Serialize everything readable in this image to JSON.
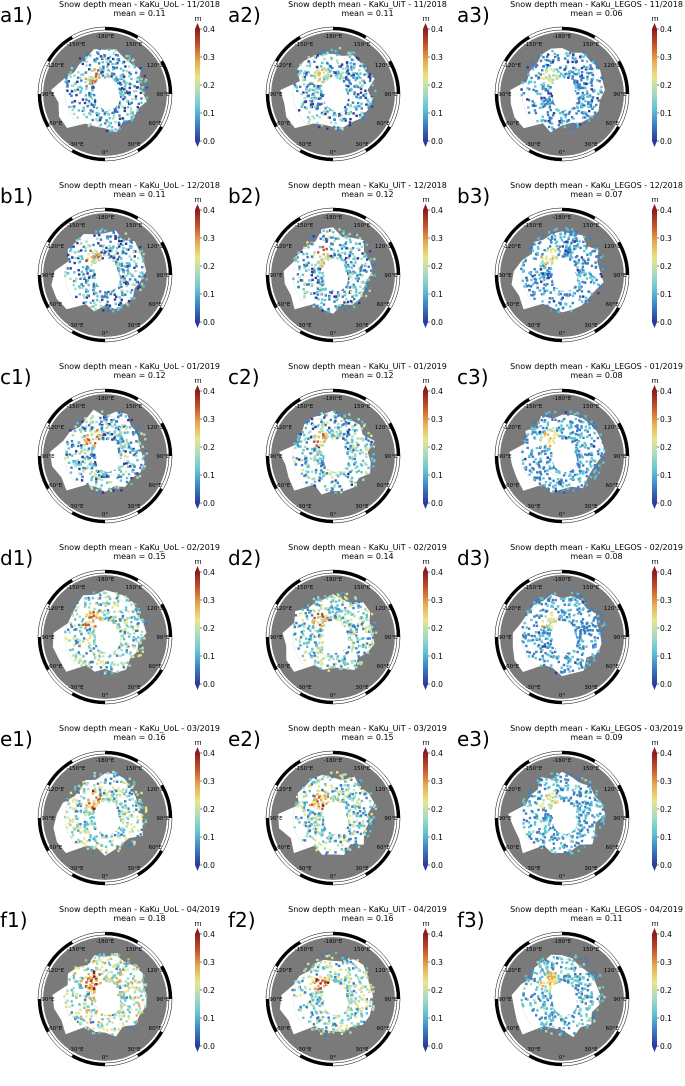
{
  "unit_label": "m",
  "colorbar_ticks": [
    "0.0",
    "0.1",
    "0.2",
    "0.3",
    "0.4"
  ],
  "colormap": [
    "#2b3a9b",
    "#3c7fc2",
    "#5fc3d6",
    "#a6dcc0",
    "#e8e58a",
    "#e8a94f",
    "#c4542c",
    "#8a1c1c"
  ],
  "land_color": "#7a7a7a",
  "ocean_color": "#ffffff",
  "frame_color": "#000000",
  "longitude_labels": [
    "-180°E",
    "150°E",
    "120°E",
    "90°E",
    "60°E",
    "30°E",
    "0°",
    "-30°E",
    "-60°E",
    "-90°E",
    "-120°E",
    "-150°E"
  ],
  "panels": [
    {
      "letter": "a1)",
      "title": "Snow depth mean - KaKu_UoL - 11/2018",
      "mean": "mean = 0.11",
      "value": 0.11
    },
    {
      "letter": "a2)",
      "title": "Snow depth mean - KaKu_UiT - 11/2018",
      "mean": "mean = 0.11",
      "value": 0.11
    },
    {
      "letter": "a3)",
      "title": "Snow depth mean - KaKu_LEGOS - 11/2018",
      "mean": "mean = 0.06",
      "value": 0.06
    },
    {
      "letter": "b1)",
      "title": "Snow depth mean - KaKu_UoL - 12/2018",
      "mean": "mean = 0.11",
      "value": 0.11
    },
    {
      "letter": "b2)",
      "title": "Snow depth mean - KaKu_UiT - 12/2018",
      "mean": "mean = 0.12",
      "value": 0.12
    },
    {
      "letter": "b3)",
      "title": "Snow depth mean - KaKu_LEGOS - 12/2018",
      "mean": "mean = 0.07",
      "value": 0.07
    },
    {
      "letter": "c1)",
      "title": "Snow depth mean - KaKu_UoL - 01/2019",
      "mean": "mean = 0.12",
      "value": 0.12
    },
    {
      "letter": "c2)",
      "title": "Snow depth mean - KaKu_UiT - 01/2019",
      "mean": "mean = 0.12",
      "value": 0.12
    },
    {
      "letter": "c3)",
      "title": "Snow depth mean - KaKu_LEGOS - 01/2019",
      "mean": "mean = 0.08",
      "value": 0.08
    },
    {
      "letter": "d1)",
      "title": "Snow depth mean - KaKu_UoL - 02/2019",
      "mean": "mean = 0.15",
      "value": 0.15
    },
    {
      "letter": "d2)",
      "title": "Snow depth mean - KaKu_UiT - 02/2019",
      "mean": "mean = 0.14",
      "value": 0.14
    },
    {
      "letter": "d3)",
      "title": "Snow depth mean - KaKu_LEGOS - 02/2019",
      "mean": "mean = 0.08",
      "value": 0.08
    },
    {
      "letter": "e1)",
      "title": "Snow depth mean - KaKu_UoL - 03/2019",
      "mean": "mean = 0.16",
      "value": 0.16
    },
    {
      "letter": "e2)",
      "title": "Snow depth mean - KaKu_UiT - 03/2019",
      "mean": "mean = 0.15",
      "value": 0.15
    },
    {
      "letter": "e3)",
      "title": "Snow depth mean - KaKu_LEGOS - 03/2019",
      "mean": "mean = 0.09",
      "value": 0.09
    },
    {
      "letter": "f1)",
      "title": "Snow depth mean - KaKu_UoL - 04/2019",
      "mean": "mean = 0.18",
      "value": 0.18
    },
    {
      "letter": "f2)",
      "title": "Snow depth mean - KaKu_UiT - 04/2019",
      "mean": "mean = 0.16",
      "value": 0.16
    },
    {
      "letter": "f3)",
      "title": "Snow depth mean - KaKu_LEGOS - 04/2019",
      "mean": "mean = 0.11",
      "value": 0.11
    }
  ]
}
